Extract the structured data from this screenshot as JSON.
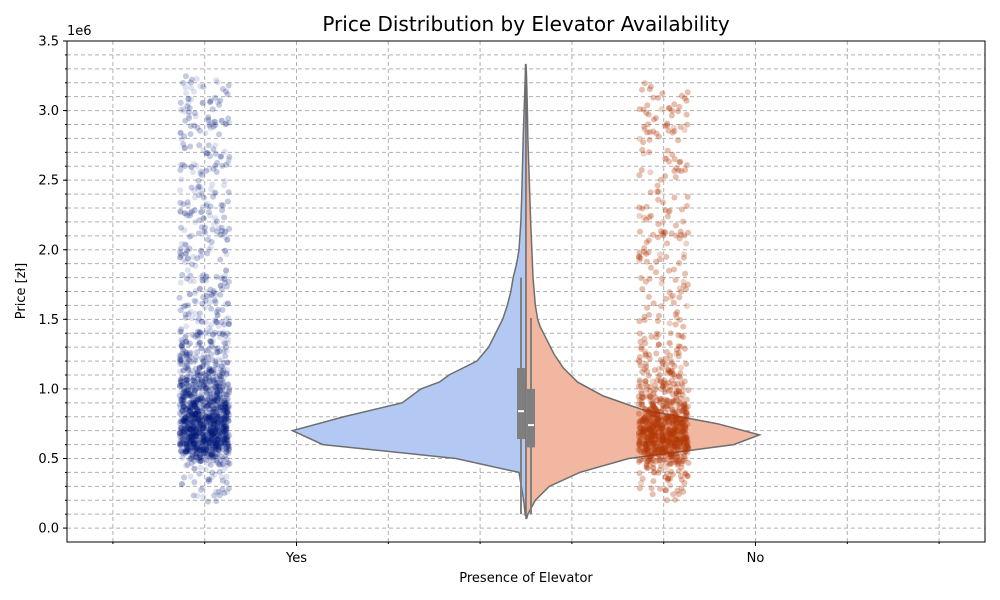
{
  "chart_data": {
    "type": "violin",
    "title": "Price Distribution by Elevator Availability",
    "xlabel": "Presence of Elevator",
    "ylabel": "Price [zł]",
    "y_offset_label": "1e6",
    "categories": [
      "Yes",
      "No"
    ],
    "ylim": [
      -0.1,
      3.5
    ],
    "y_ticks": [
      0.0,
      0.5,
      1.0,
      1.5,
      2.0,
      2.5,
      3.0,
      3.5
    ],
    "y_tick_labels": [
      "0.0",
      "0.5",
      "1.0",
      "1.5",
      "2.0",
      "2.5",
      "3.0",
      "3.5"
    ],
    "grid": true,
    "grid_style": "dashed",
    "split_violin": true,
    "series": [
      {
        "category": "Yes",
        "color": "#b3c9f3",
        "strip_color": "#001c7f",
        "strip_range": [
          0.19,
          3.25
        ],
        "density": [
          [
            0.09,
            0.003
          ],
          [
            0.2,
            0.01
          ],
          [
            0.3,
            0.02
          ],
          [
            0.4,
            0.03
          ],
          [
            0.5,
            0.3
          ],
          [
            0.6,
            0.87
          ],
          [
            0.7,
            1.0
          ],
          [
            0.8,
            0.78
          ],
          [
            0.9,
            0.53
          ],
          [
            1.0,
            0.45
          ],
          [
            1.05,
            0.37
          ],
          [
            1.1,
            0.33
          ],
          [
            1.2,
            0.21
          ],
          [
            1.3,
            0.16
          ],
          [
            1.4,
            0.13
          ],
          [
            1.5,
            0.1
          ],
          [
            1.6,
            0.08
          ],
          [
            1.7,
            0.065
          ],
          [
            1.8,
            0.055
          ],
          [
            1.9,
            0.04
          ],
          [
            2.0,
            0.03
          ],
          [
            2.2,
            0.022
          ],
          [
            2.4,
            0.018
          ],
          [
            2.6,
            0.015
          ],
          [
            2.8,
            0.012
          ],
          [
            3.0,
            0.008
          ],
          [
            3.2,
            0.004
          ],
          [
            3.33,
            0.002
          ]
        ],
        "box": {
          "q1": 0.64,
          "median": 0.84,
          "q3": 1.15,
          "whisker_low": 0.1,
          "whisker_high": 1.8
        }
      },
      {
        "category": "No",
        "color": "#f1b7a0",
        "strip_color": "#b13c07",
        "strip_range": [
          0.2,
          3.2
        ],
        "density": [
          [
            0.07,
            0.003
          ],
          [
            0.1,
            0.008
          ],
          [
            0.2,
            0.04
          ],
          [
            0.3,
            0.1
          ],
          [
            0.4,
            0.23
          ],
          [
            0.5,
            0.44
          ],
          [
            0.6,
            0.89
          ],
          [
            0.67,
            1.0
          ],
          [
            0.75,
            0.82
          ],
          [
            0.85,
            0.5
          ],
          [
            0.95,
            0.33
          ],
          [
            1.05,
            0.22
          ],
          [
            1.15,
            0.16
          ],
          [
            1.25,
            0.12
          ],
          [
            1.35,
            0.09
          ],
          [
            1.45,
            0.06
          ],
          [
            1.5,
            0.05
          ],
          [
            1.6,
            0.04
          ],
          [
            1.8,
            0.03
          ],
          [
            2.0,
            0.025
          ],
          [
            2.2,
            0.02
          ],
          [
            2.4,
            0.016
          ],
          [
            2.6,
            0.012
          ],
          [
            2.8,
            0.008
          ],
          [
            3.0,
            0.006
          ],
          [
            3.2,
            0.003
          ],
          [
            3.31,
            0.001
          ]
        ],
        "box": {
          "q1": 0.58,
          "median": 0.74,
          "q3": 1.0,
          "whisker_low": 0.1,
          "whisker_high": 1.51
        }
      }
    ]
  }
}
